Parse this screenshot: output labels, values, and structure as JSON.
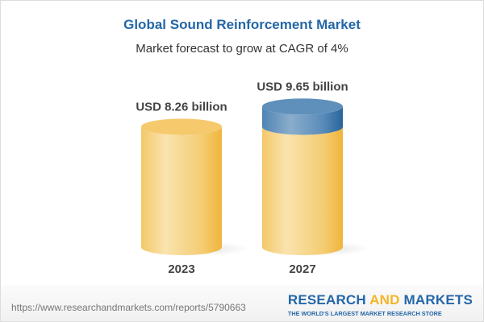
{
  "title": "Global Sound Reinforcement Market",
  "subtitle": "Market forecast to grow at CAGR of 4%",
  "chart_data": {
    "type": "bar",
    "style": "3d-cylinder",
    "title": "Global Sound Reinforcement Market",
    "subtitle": "Market forecast to grow at CAGR of 4%",
    "categories": [
      "2023",
      "2027"
    ],
    "values": [
      8.26,
      9.65
    ],
    "data_labels": [
      "USD 8.26 billion",
      "USD 9.65 billion"
    ],
    "unit": "USD billion",
    "cagr_percent": 4,
    "grid": false,
    "colors": {
      "base": "#f4c25a",
      "growth": "#4f84b4"
    }
  },
  "footer": {
    "url": "https://www.researchandmarkets.com/reports/5790663",
    "logo": {
      "part1": "RESEARCH ",
      "part2": "AND",
      "part3": " MARKETS",
      "tagline": "THE WORLD'S LARGEST MARKET RESEARCH STORE"
    }
  }
}
